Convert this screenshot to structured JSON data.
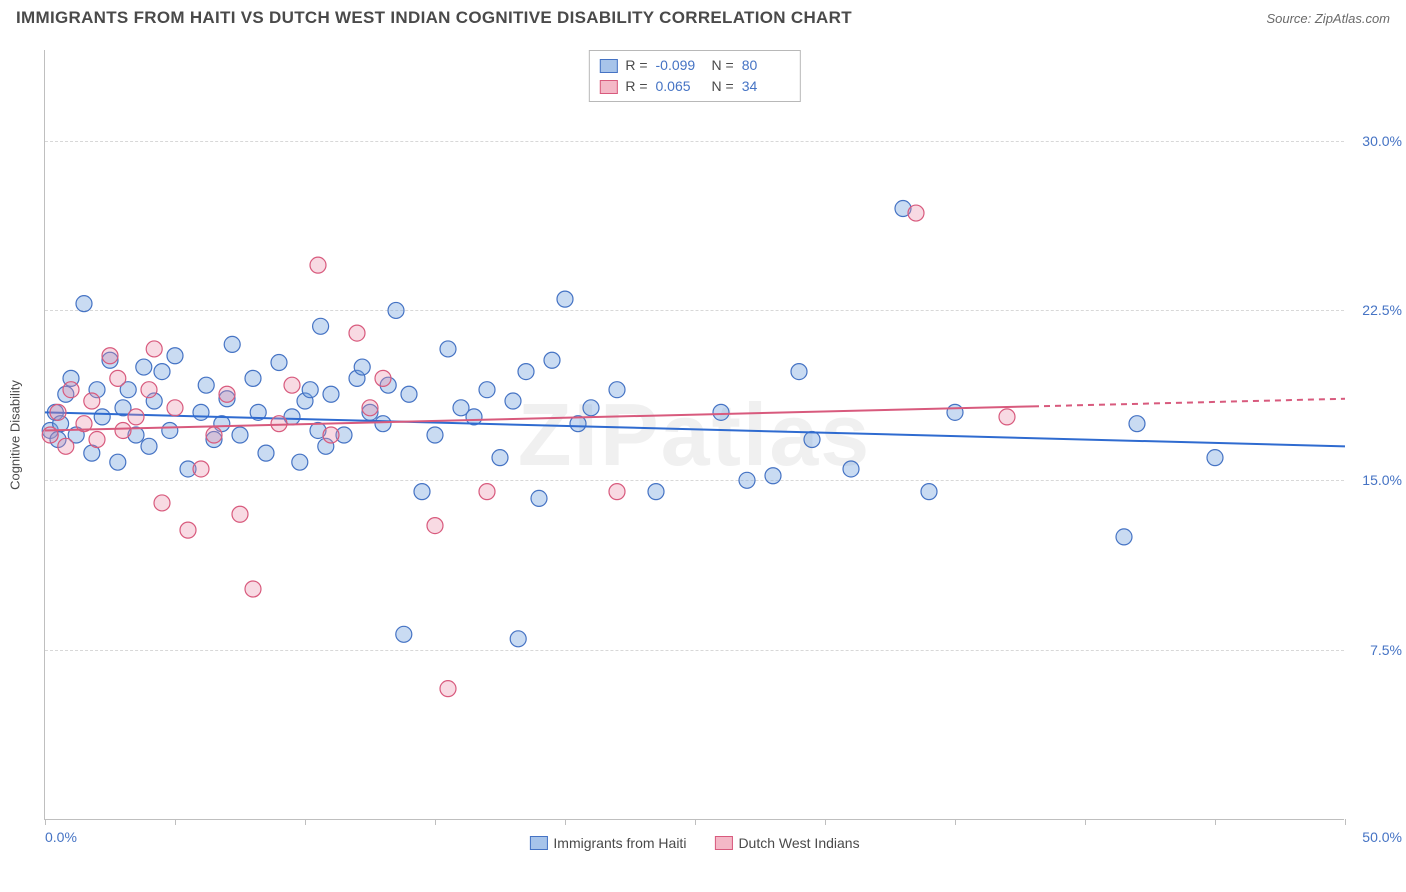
{
  "header": {
    "title": "IMMIGRANTS FROM HAITI VS DUTCH WEST INDIAN COGNITIVE DISABILITY CORRELATION CHART",
    "source": "Source: ZipAtlas.com"
  },
  "chart": {
    "type": "scatter",
    "ylabel": "Cognitive Disability",
    "watermark": "ZIPatlas",
    "background_color": "#ffffff",
    "grid_color": "#d8d8d8",
    "axis_color": "#bfbfbf",
    "tick_label_color": "#4573c4",
    "text_color": "#4a4a4a",
    "xlim": [
      0,
      50
    ],
    "ylim": [
      0,
      34
    ],
    "yticks": [
      7.5,
      15.0,
      22.5,
      30.0
    ],
    "ytick_labels": [
      "7.5%",
      "15.0%",
      "22.5%",
      "30.0%"
    ],
    "xtick_positions": [
      0,
      5,
      10,
      15,
      20,
      25,
      30,
      35,
      40,
      45,
      50
    ],
    "x0_label": "0.0%",
    "x_end_label": "50.0%",
    "marker_radius": 8,
    "marker_stroke_width": 1.2,
    "line_width": 2,
    "stat_legend": {
      "rows": [
        {
          "swatch_fill": "#a7c4ea",
          "swatch_stroke": "#4573c4",
          "r_label": "R =",
          "r_val": "-0.099",
          "n_label": "N =",
          "n_val": "80"
        },
        {
          "swatch_fill": "#f4b8c7",
          "swatch_stroke": "#d85a7d",
          "r_label": "R =",
          "r_val": "0.065",
          "n_label": "N =",
          "n_val": "34"
        }
      ]
    },
    "bottom_legend": [
      {
        "swatch_fill": "#a7c4ea",
        "swatch_stroke": "#4573c4",
        "label": "Immigrants from Haiti"
      },
      {
        "swatch_fill": "#f4b8c7",
        "swatch_stroke": "#d85a7d",
        "label": "Dutch West Indians"
      }
    ],
    "series": [
      {
        "name": "haiti",
        "fill": "rgba(114,160,222,0.38)",
        "stroke": "#4573c4",
        "trend": {
          "x1": 0,
          "y1": 18.0,
          "x2": 50,
          "y2": 16.5,
          "color": "#2f6bd0",
          "solid_until_x": 50
        },
        "points": [
          [
            0.2,
            17.2
          ],
          [
            0.4,
            18.0
          ],
          [
            0.5,
            16.8
          ],
          [
            0.6,
            17.5
          ],
          [
            0.8,
            18.8
          ],
          [
            1.0,
            19.5
          ],
          [
            1.2,
            17.0
          ],
          [
            1.5,
            22.8
          ],
          [
            1.8,
            16.2
          ],
          [
            2.0,
            19.0
          ],
          [
            2.2,
            17.8
          ],
          [
            2.5,
            20.3
          ],
          [
            2.8,
            15.8
          ],
          [
            3.0,
            18.2
          ],
          [
            3.2,
            19.0
          ],
          [
            3.5,
            17.0
          ],
          [
            3.8,
            20.0
          ],
          [
            4.0,
            16.5
          ],
          [
            4.2,
            18.5
          ],
          [
            4.5,
            19.8
          ],
          [
            4.8,
            17.2
          ],
          [
            5.0,
            20.5
          ],
          [
            5.5,
            15.5
          ],
          [
            6.0,
            18.0
          ],
          [
            6.2,
            19.2
          ],
          [
            6.5,
            16.8
          ],
          [
            6.8,
            17.5
          ],
          [
            7.0,
            18.6
          ],
          [
            7.2,
            21.0
          ],
          [
            7.5,
            17.0
          ],
          [
            8.0,
            19.5
          ],
          [
            8.2,
            18.0
          ],
          [
            8.5,
            16.2
          ],
          [
            9.0,
            20.2
          ],
          [
            9.5,
            17.8
          ],
          [
            9.8,
            15.8
          ],
          [
            10.0,
            18.5
          ],
          [
            10.2,
            19.0
          ],
          [
            10.5,
            17.2
          ],
          [
            10.6,
            21.8
          ],
          [
            10.8,
            16.5
          ],
          [
            11.0,
            18.8
          ],
          [
            11.5,
            17.0
          ],
          [
            12.0,
            19.5
          ],
          [
            12.2,
            20.0
          ],
          [
            12.5,
            18.0
          ],
          [
            13.0,
            17.5
          ],
          [
            13.2,
            19.2
          ],
          [
            13.5,
            22.5
          ],
          [
            13.8,
            8.2
          ],
          [
            14.0,
            18.8
          ],
          [
            14.5,
            14.5
          ],
          [
            15.0,
            17.0
          ],
          [
            15.5,
            20.8
          ],
          [
            16.0,
            18.2
          ],
          [
            16.5,
            17.8
          ],
          [
            17.0,
            19.0
          ],
          [
            17.5,
            16.0
          ],
          [
            18.0,
            18.5
          ],
          [
            18.2,
            8.0
          ],
          [
            18.5,
            19.8
          ],
          [
            19.0,
            14.2
          ],
          [
            19.5,
            20.3
          ],
          [
            20.0,
            23.0
          ],
          [
            20.5,
            17.5
          ],
          [
            21.0,
            18.2
          ],
          [
            22.0,
            19.0
          ],
          [
            23.5,
            14.5
          ],
          [
            26.0,
            18.0
          ],
          [
            27.0,
            15.0
          ],
          [
            28.0,
            15.2
          ],
          [
            29.0,
            19.8
          ],
          [
            29.5,
            16.8
          ],
          [
            31.0,
            15.5
          ],
          [
            33.0,
            27.0
          ],
          [
            34.0,
            14.5
          ],
          [
            35.0,
            18.0
          ],
          [
            41.5,
            12.5
          ],
          [
            42.0,
            17.5
          ],
          [
            45.0,
            16.0
          ]
        ]
      },
      {
        "name": "dutch",
        "fill": "rgba(232,140,168,0.32)",
        "stroke": "#d85a7d",
        "trend": {
          "x1": 0,
          "y1": 17.2,
          "x2": 50,
          "y2": 18.6,
          "color": "#d85a7d",
          "solid_until_x": 38
        },
        "points": [
          [
            0.2,
            17.0
          ],
          [
            0.5,
            18.0
          ],
          [
            0.8,
            16.5
          ],
          [
            1.0,
            19.0
          ],
          [
            1.5,
            17.5
          ],
          [
            1.8,
            18.5
          ],
          [
            2.0,
            16.8
          ],
          [
            2.5,
            20.5
          ],
          [
            2.8,
            19.5
          ],
          [
            3.0,
            17.2
          ],
          [
            3.5,
            17.8
          ],
          [
            4.0,
            19.0
          ],
          [
            4.2,
            20.8
          ],
          [
            4.5,
            14.0
          ],
          [
            5.0,
            18.2
          ],
          [
            5.5,
            12.8
          ],
          [
            6.0,
            15.5
          ],
          [
            6.5,
            17.0
          ],
          [
            7.0,
            18.8
          ],
          [
            7.5,
            13.5
          ],
          [
            8.0,
            10.2
          ],
          [
            9.0,
            17.5
          ],
          [
            9.5,
            19.2
          ],
          [
            10.5,
            24.5
          ],
          [
            11.0,
            17.0
          ],
          [
            12.0,
            21.5
          ],
          [
            12.5,
            18.2
          ],
          [
            13.0,
            19.5
          ],
          [
            15.0,
            13.0
          ],
          [
            15.5,
            5.8
          ],
          [
            17.0,
            14.5
          ],
          [
            22.0,
            14.5
          ],
          [
            33.5,
            26.8
          ],
          [
            37.0,
            17.8
          ]
        ]
      }
    ]
  }
}
